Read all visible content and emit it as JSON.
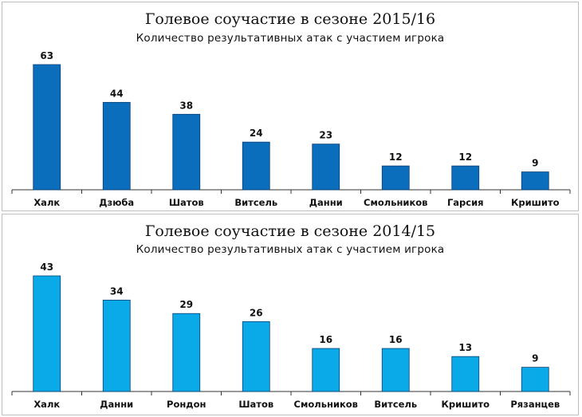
{
  "chart_data": [
    {
      "type": "bar",
      "title": "Голевое соучастие в сезоне 2015/16",
      "subtitle": "Количество результативных атак с участием игрока",
      "categories": [
        "Халк",
        "Дзюба",
        "Шатов",
        "Витсель",
        "Данни",
        "Смольников",
        "Гарсия",
        "Кришито"
      ],
      "values": [
        63,
        44,
        38,
        24,
        23,
        12,
        12,
        9
      ],
      "ylim": [
        0,
        63
      ],
      "color": "#0a6ebd"
    },
    {
      "type": "bar",
      "title": "Голевое соучастие в сезоне 2014/15",
      "subtitle": "Количество результативных атак с участием игрока",
      "categories": [
        "Халк",
        "Данни",
        "Рондон",
        "Шатов",
        "Смольников",
        "Витсель",
        "Кришито",
        "Рязанцев"
      ],
      "values": [
        43,
        34,
        29,
        26,
        16,
        16,
        13,
        9
      ],
      "ylim": [
        0,
        43
      ],
      "color": "#0aaae8"
    }
  ]
}
